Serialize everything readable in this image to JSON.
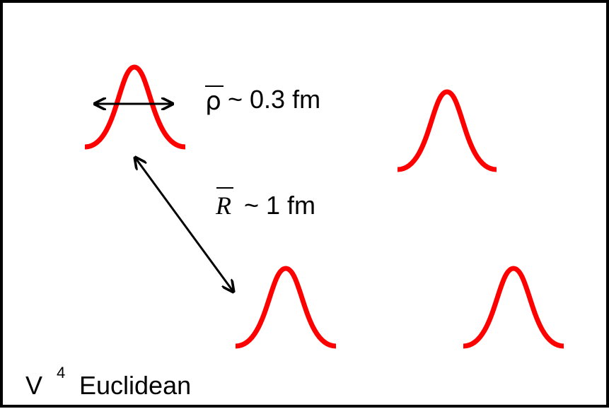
{
  "labels": {
    "rho": {
      "symbol": "ρ",
      "text": "~ 0.3 fm"
    },
    "distance": {
      "symbol": "R",
      "text": "~ 1 fm"
    },
    "space": {
      "symbol": "V",
      "exponent": "4",
      "text": "Euclidean"
    }
  }
}
